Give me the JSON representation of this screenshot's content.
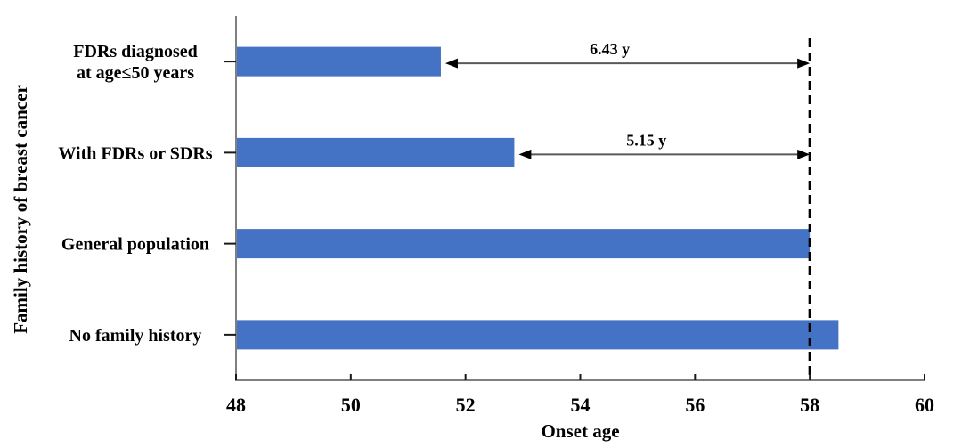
{
  "figure": {
    "background": "#ffffff"
  },
  "chart_data": {
    "type": "bar",
    "orientation": "horizontal",
    "title": "",
    "xlabel": "Onset age",
    "ylabel": "Family history of breast cancer",
    "categories": [
      "FDRs diagnosed\nat age≤50 years",
      "With FDRs or SDRs",
      "General population",
      "No family history"
    ],
    "values": [
      51.57,
      52.85,
      58.0,
      58.5
    ],
    "xlim": [
      48,
      60
    ],
    "xticks": [
      48,
      50,
      52,
      54,
      56,
      58,
      60
    ],
    "grid": false,
    "legend": false,
    "bar_color": "#4472C4",
    "axis_color": "#7F7F7F",
    "tick_color": "#1A1A1A",
    "text_color": "#000000",
    "arrow_line_color": "#595959",
    "reference_line": {
      "value": 58,
      "style": "dashed",
      "color": "#000000"
    },
    "annotations": [
      {
        "label": "6.43 y",
        "category_index": 0,
        "from_value": 51.57,
        "to_value": 58
      },
      {
        "label": "5.15 y",
        "category_index": 1,
        "from_value": 52.85,
        "to_value": 58
      }
    ]
  }
}
